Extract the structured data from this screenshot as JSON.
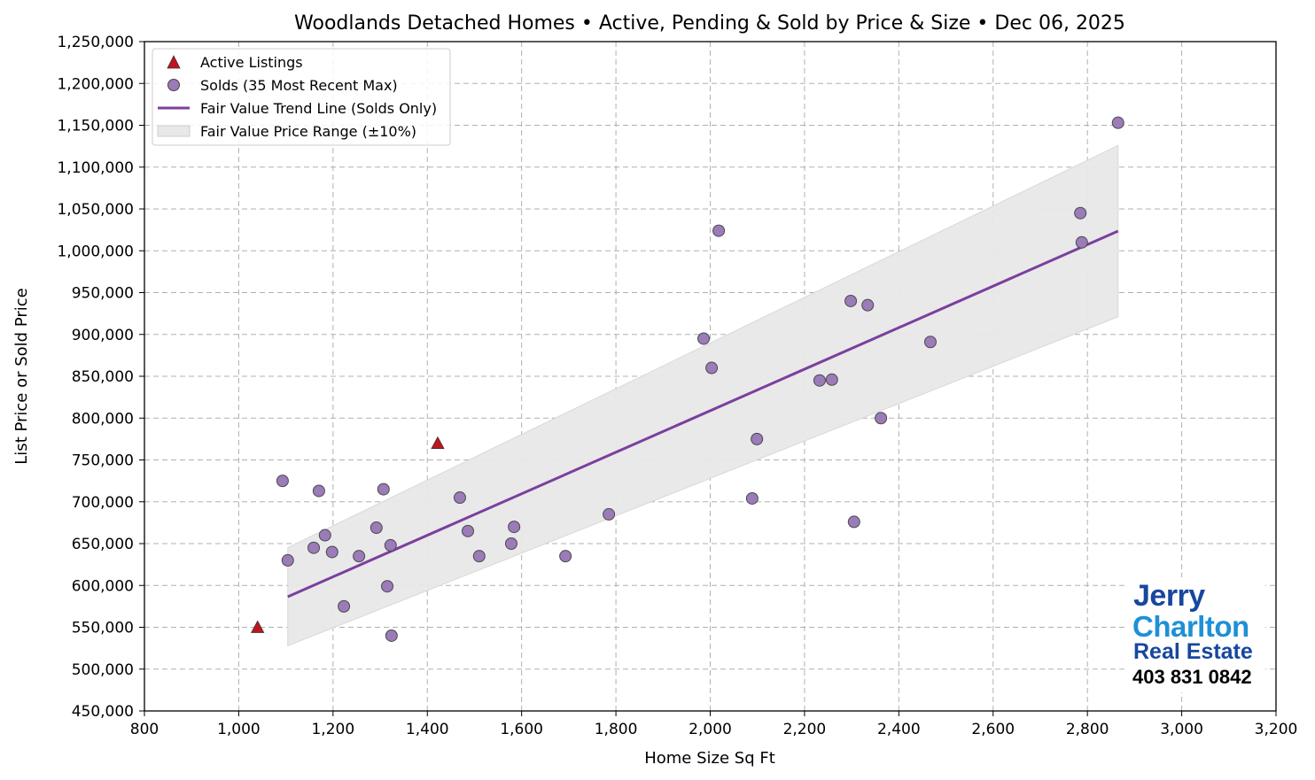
{
  "chart_data": {
    "type": "scatter",
    "title": "Woodlands Detached Homes • Active, Pending & Sold by Price & Size • Dec 06, 2025",
    "xlabel": "Home Size Sq Ft",
    "ylabel": "List Price or Sold Price",
    "xlim": [
      800,
      3200
    ],
    "ylim": [
      450000,
      1250000
    ],
    "xticks": [
      800,
      1000,
      1200,
      1400,
      1600,
      1800,
      2000,
      2200,
      2400,
      2600,
      2800,
      3000,
      3200
    ],
    "xtick_labels": [
      "800",
      "1,000",
      "1,200",
      "1,400",
      "1,600",
      "1,800",
      "2,000",
      "2,200",
      "2,400",
      "2,600",
      "2,800",
      "3,000",
      "3,200"
    ],
    "yticks": [
      450000,
      500000,
      550000,
      600000,
      650000,
      700000,
      750000,
      800000,
      850000,
      900000,
      950000,
      1000000,
      1050000,
      1100000,
      1150000,
      1200000,
      1250000
    ],
    "ytick_labels": [
      "450,000",
      "500,000",
      "550,000",
      "600,000",
      "650,000",
      "700,000",
      "750,000",
      "800,000",
      "850,000",
      "900,000",
      "950,000",
      "1,000,000",
      "1,050,000",
      "1,100,000",
      "1,150,000",
      "1,200,000",
      "1,250,000"
    ],
    "grid": true,
    "legend_placement": "top-left",
    "series": [
      {
        "name": "Active Listings",
        "marker": "triangle",
        "color": "#c0141e",
        "x": [
          1040,
          1422
        ],
        "y": [
          550000,
          770000
        ]
      },
      {
        "name": "Solds (35 Most Recent Max)",
        "marker": "circle",
        "color": "#9b7bb8",
        "x": [
          1093,
          1104,
          1170,
          1159,
          1183,
          1198,
          1223,
          1255,
          1292,
          1307,
          1315,
          1322,
          1324,
          1469,
          1486,
          1510,
          1578,
          1584,
          1693,
          1785,
          1986,
          2003,
          2018,
          2089,
          2099,
          2232,
          2258,
          2298,
          2305,
          2334,
          2362,
          2467,
          2785,
          2788,
          2865
        ],
        "y": [
          725000,
          630000,
          713000,
          645000,
          660000,
          640000,
          575000,
          635000,
          669000,
          715000,
          599000,
          648000,
          540000,
          705000,
          665000,
          635000,
          650000,
          670000,
          635000,
          685000,
          895000,
          860000,
          1024000,
          704000,
          775000,
          845000,
          846000,
          940000,
          676000,
          935000,
          800000,
          891000,
          1045000,
          1010000,
          1153000
        ]
      }
    ],
    "trend_line": {
      "name": "Fair Value Trend Line (Solds Only)",
      "color": "#7b3f9e",
      "x": [
        1104,
        2865
      ],
      "y": [
        586500,
        1023500
      ]
    },
    "range_band": {
      "name": "Fair Value Price Range (±10%)",
      "color": "#e8e8e8",
      "pct": 10
    }
  },
  "logo": {
    "line1": "Jerry",
    "line2": "Charlton",
    "line3": "Real Estate",
    "phone": "403 831 0842"
  }
}
